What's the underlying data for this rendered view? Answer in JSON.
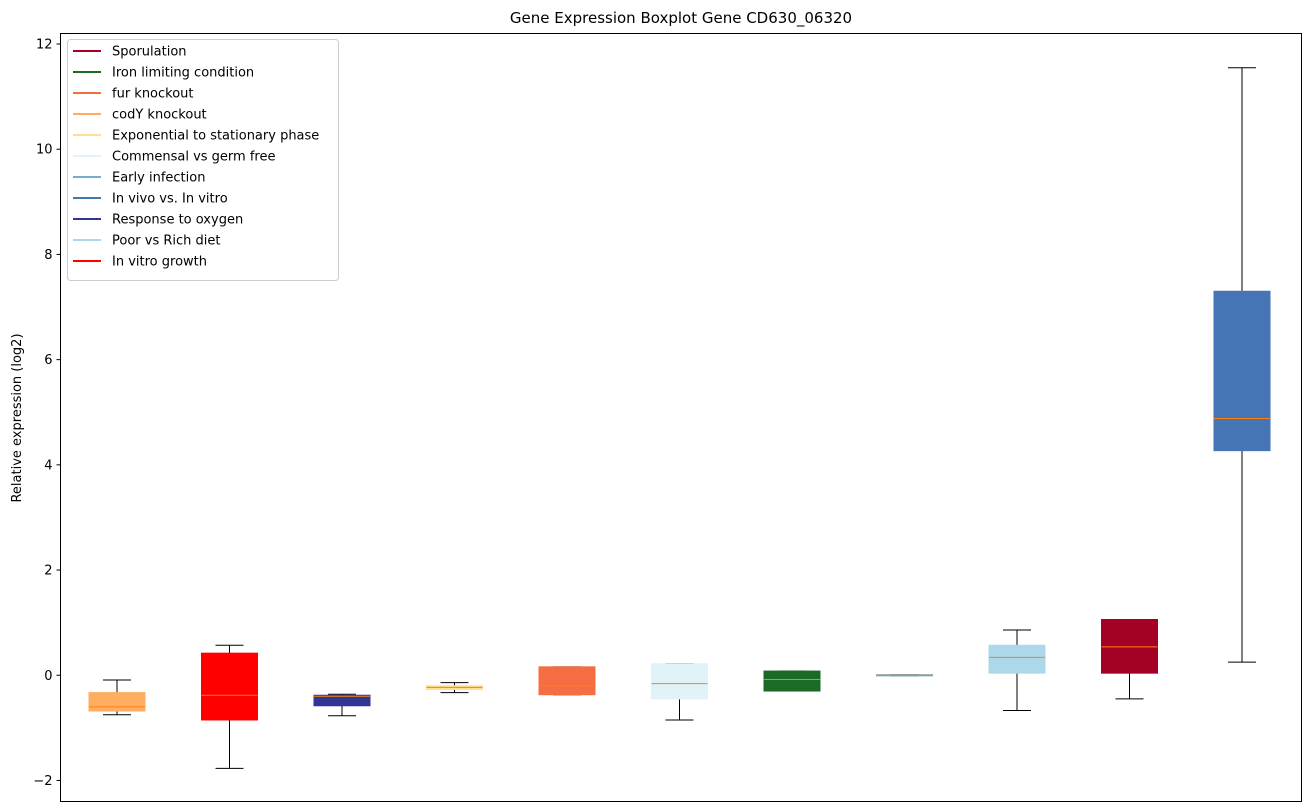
{
  "chart_data": {
    "type": "box",
    "title": "Gene Expression Boxplot Gene CD630_06320",
    "xlabel": "",
    "ylabel": "Relative expression (log2)",
    "ylim": [
      -2.4,
      12.2
    ],
    "yticks": [
      -2,
      0,
      2,
      4,
      6,
      8,
      10,
      12
    ],
    "ytick_labels": [
      "−2",
      "0",
      "2",
      "4",
      "6",
      "8",
      "10",
      "12"
    ],
    "grid": false,
    "legend_position": "top-left",
    "legend": [
      {
        "label": "Sporulation",
        "color": "#a50026"
      },
      {
        "label": "Iron limiting condition",
        "color": "#1a6b27"
      },
      {
        "label": "fur knockout",
        "color": "#f46d43"
      },
      {
        "label": "codY knockout",
        "color": "#fdae61"
      },
      {
        "label": "Exponential to stationary phase",
        "color": "#fee090"
      },
      {
        "label": "Commensal vs germ free",
        "color": "#e0f3f8"
      },
      {
        "label": "Early infection",
        "color": "#74add1"
      },
      {
        "label": "In vivo vs. In vitro",
        "color": "#4575b4"
      },
      {
        "label": "Response to oxygen",
        "color": "#313695"
      },
      {
        "label": "Poor vs Rich diet",
        "color": "#abd9e9"
      },
      {
        "label": "In vitro growth",
        "color": "#ff0000"
      }
    ],
    "median_color": "#ff7f0e",
    "boxes": [
      {
        "color": "#fdae61",
        "whisker_low": -0.75,
        "q1": -0.68,
        "median": -0.6,
        "q3": -0.33,
        "whisker_high": -0.09
      },
      {
        "color": "#ff0000",
        "whisker_low": -1.77,
        "q1": -0.85,
        "median": -0.38,
        "q3": 0.42,
        "whisker_high": 0.57
      },
      {
        "color": "#313695",
        "whisker_low": -0.77,
        "q1": -0.58,
        "median": -0.4,
        "q3": -0.38,
        "whisker_high": -0.36
      },
      {
        "color": "#fee090",
        "whisker_low": -0.33,
        "q1": -0.27,
        "median": -0.23,
        "q3": -0.2,
        "whisker_high": -0.14
      },
      {
        "color": "#f46d43",
        "whisker_low": -0.37,
        "q1": -0.37,
        "median": -0.2,
        "q3": 0.16,
        "whisker_high": 0.16
      },
      {
        "color": "#e0f3f8",
        "whisker_low": -0.85,
        "q1": -0.45,
        "median": -0.16,
        "q3": 0.22,
        "whisker_high": 0.22
      },
      {
        "color": "#1a6b27",
        "whisker_low": -0.3,
        "q1": -0.3,
        "median": -0.08,
        "q3": 0.08,
        "whisker_high": 0.08
      },
      {
        "color": "#74add1",
        "whisker_low": -0.01,
        "q1": -0.01,
        "median": 0.0,
        "q3": 0.01,
        "whisker_high": 0.01
      },
      {
        "color": "#abd9e9",
        "whisker_low": -0.67,
        "q1": 0.04,
        "median": 0.34,
        "q3": 0.57,
        "whisker_high": 0.86
      },
      {
        "color": "#a50026",
        "whisker_low": -0.45,
        "q1": 0.04,
        "median": 0.54,
        "q3": 1.06,
        "whisker_high": 1.06
      },
      {
        "color": "#4575b4",
        "whisker_low": 0.25,
        "q1": 4.27,
        "median": 4.88,
        "q3": 7.3,
        "whisker_high": 11.55
      }
    ]
  }
}
